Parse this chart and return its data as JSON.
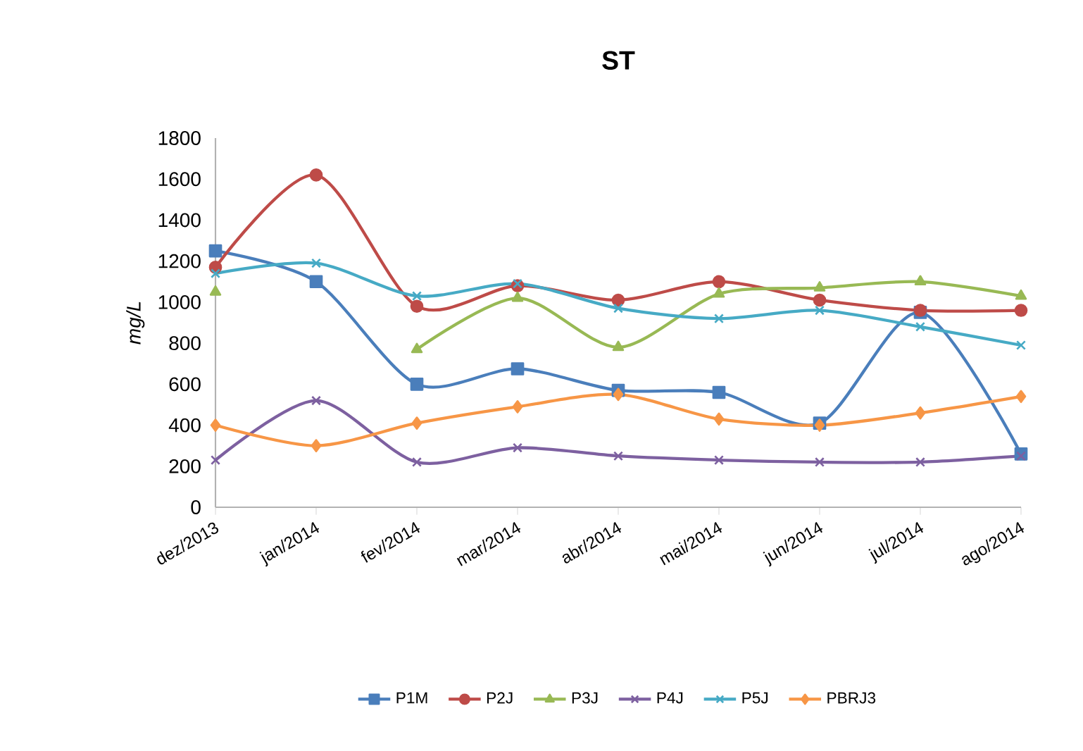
{
  "chart_data": {
    "type": "line",
    "title": "ST",
    "ylabel": "mg/L",
    "categories": [
      "dez/2013",
      "jan/2014",
      "fev/2014",
      "mar/2014",
      "abr/2014",
      "mai/2014",
      "jun/2014",
      "jul/2014",
      "ago/2014"
    ],
    "ylim": [
      0,
      1800
    ],
    "yticks": [
      0,
      200,
      400,
      600,
      800,
      1000,
      1200,
      1400,
      1600,
      1800
    ],
    "legend": "bottom",
    "series": [
      {
        "name": "P1M",
        "color": "#4a7ebb",
        "marker": "square",
        "values": [
          1250,
          1100,
          600,
          675,
          570,
          560,
          410,
          950,
          260
        ]
      },
      {
        "name": "P2J",
        "color": "#be4b48",
        "marker": "circle",
        "values": [
          1170,
          1620,
          980,
          1080,
          1010,
          1100,
          1010,
          960,
          960
        ]
      },
      {
        "name": "P3J",
        "color": "#98b954",
        "marker": "triangle",
        "values": [
          1050,
          null,
          770,
          1020,
          780,
          1040,
          1070,
          1100,
          1030
        ]
      },
      {
        "name": "P4J",
        "color": "#7d60a0",
        "marker": "cross",
        "values": [
          230,
          520,
          220,
          290,
          250,
          230,
          220,
          220,
          250
        ]
      },
      {
        "name": "P5J",
        "color": "#46aac5",
        "marker": "cross",
        "values": [
          1140,
          1190,
          1030,
          1090,
          970,
          920,
          960,
          880,
          790
        ]
      },
      {
        "name": "PBRJ3",
        "color": "#f79646",
        "marker": "diamond",
        "values": [
          400,
          300,
          410,
          490,
          550,
          430,
          400,
          460,
          540
        ]
      }
    ]
  }
}
